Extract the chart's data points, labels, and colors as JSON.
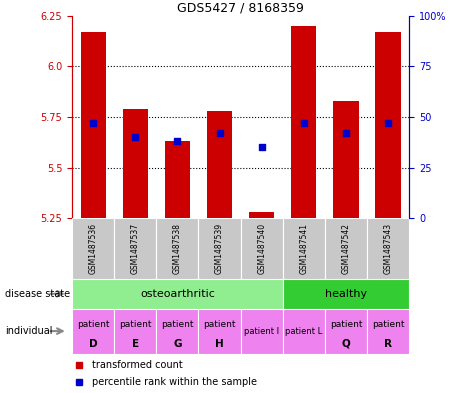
{
  "title": "GDS5427 / 8168359",
  "samples": [
    "GSM1487536",
    "GSM1487537",
    "GSM1487538",
    "GSM1487539",
    "GSM1487540",
    "GSM1487541",
    "GSM1487542",
    "GSM1487543"
  ],
  "transformed_count": [
    6.17,
    5.79,
    5.63,
    5.78,
    5.28,
    6.2,
    5.83,
    6.17
  ],
  "percentile_rank": [
    47,
    40,
    38,
    42,
    35,
    47,
    42,
    47
  ],
  "ylim_left": [
    5.25,
    6.25
  ],
  "ylim_right": [
    0,
    100
  ],
  "yticks_left": [
    5.25,
    5.5,
    5.75,
    6.0,
    6.25
  ],
  "yticks_right": [
    0,
    25,
    50,
    75,
    100
  ],
  "bar_color": "#cc0000",
  "dot_color": "#0000cc",
  "bar_bottom": 5.25,
  "disease_state_color_oa": "#90ee90",
  "disease_state_color_h": "#33cc33",
  "individual_color": "#ee82ee",
  "sample_bg_color": "#c8c8c8",
  "left_axis_color": "#cc0000",
  "right_axis_color": "#0000cc",
  "legend_items": [
    "transformed count",
    "percentile rank within the sample"
  ],
  "grid_yticks": [
    5.5,
    5.75,
    6.0
  ]
}
